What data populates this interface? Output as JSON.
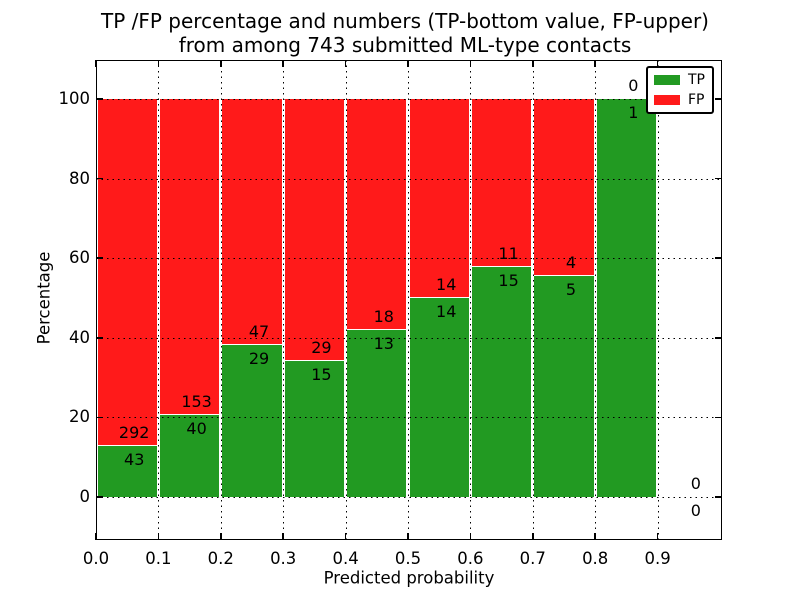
{
  "figure": {
    "title_line1": "TP /FP percentage and numbers (TP-bottom value, FP-upper)",
    "title_line2": "from among 743 submitted ML-type contacts",
    "xlabel": "Predicted probability",
    "ylabel": "Percentage"
  },
  "colors": {
    "tp_green": "#229a22",
    "fp_red": "#ff1a1a",
    "grid": "#000000",
    "text": "#000000",
    "background": "#ffffff"
  },
  "legend": {
    "position": "upper right",
    "items": [
      {
        "label": "TP",
        "color": "#229a22"
      },
      {
        "label": "FP",
        "color": "#ff1a1a"
      }
    ]
  },
  "chart_data": {
    "type": "bar",
    "stacked": true,
    "normalized_to_percent": true,
    "title": "TP /FP percentage and numbers (TP-bottom value, FP-upper) from among 743 submitted ML-type contacts",
    "xlabel": "Predicted probability",
    "ylabel": "Percentage",
    "total_contacts": 743,
    "bin_width": 0.1,
    "bin_starts": [
      0.0,
      0.1,
      0.2,
      0.3,
      0.4,
      0.5,
      0.6,
      0.7,
      0.8,
      0.9
    ],
    "xtick_labels": [
      "0.0",
      "0.1",
      "0.2",
      "0.3",
      "0.4",
      "0.5",
      "0.6",
      "0.7",
      "0.8",
      "0.9"
    ],
    "yticks": [
      0,
      20,
      40,
      60,
      80,
      100
    ],
    "xlim": [
      0.0,
      1.0
    ],
    "ylim": [
      -10.8,
      109.8
    ],
    "grid": "dotted",
    "legend_position": "upper right",
    "series": [
      {
        "name": "TP",
        "color": "#229a22",
        "counts": [
          43,
          40,
          29,
          15,
          13,
          14,
          15,
          5,
          1,
          0
        ]
      },
      {
        "name": "FP",
        "color": "#ff1a1a",
        "counts": [
          292,
          153,
          47,
          29,
          18,
          14,
          11,
          4,
          0,
          0
        ]
      }
    ],
    "tp_percent_heights": [
      12.8,
      20.7,
      38.2,
      34.1,
      41.9,
      50.0,
      57.7,
      55.6,
      100.0,
      0.0
    ]
  }
}
